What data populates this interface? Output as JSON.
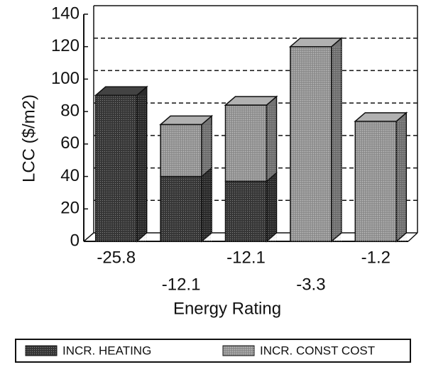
{
  "chart_data": {
    "type": "bar",
    "stacked": true,
    "categories": [
      "-25.8",
      "-12.1",
      "-12.1",
      "-3.3",
      "-1.2"
    ],
    "series": [
      {
        "name": "INCR. HEATING",
        "color": "#3a3a3a",
        "values": [
          90,
          40,
          37,
          0,
          0
        ]
      },
      {
        "name": "INCR. CONST COST",
        "color": "#9a9a9a",
        "values": [
          0,
          32,
          47,
          120,
          74
        ]
      }
    ],
    "ylabel": "LCC  ($/m2)",
    "xlabel": "Energy Rating",
    "ylim": [
      0,
      140
    ],
    "yticks": [
      0,
      20,
      40,
      60,
      80,
      100,
      120,
      140
    ],
    "grid": true
  }
}
